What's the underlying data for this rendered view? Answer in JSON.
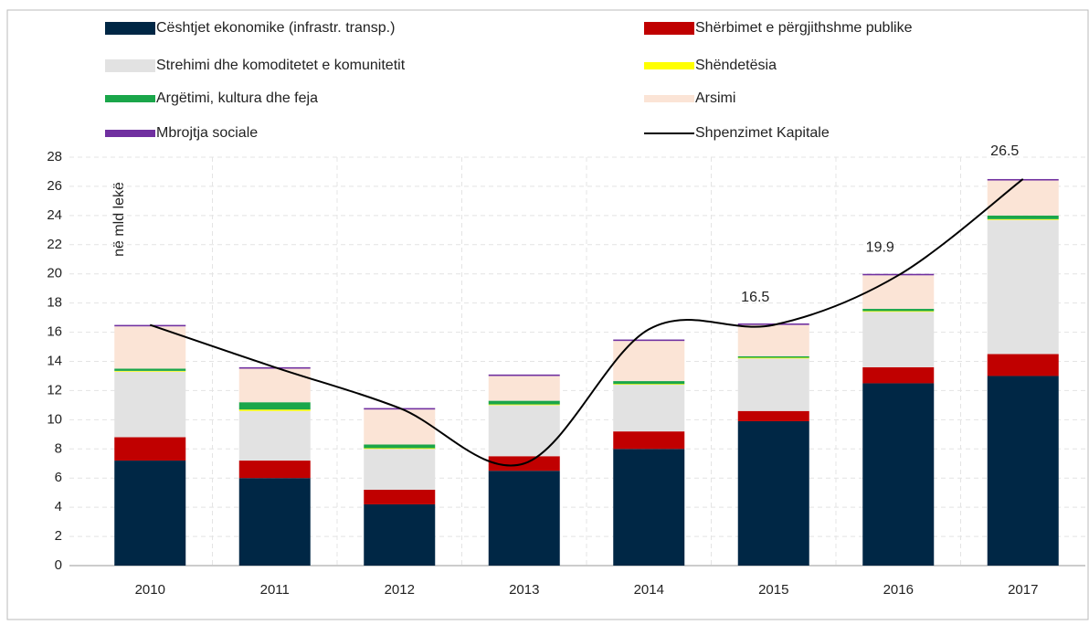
{
  "chart_data": {
    "type": "stacked_bar_line",
    "y_label": "në mld lekë",
    "categories": [
      "2010",
      "2011",
      "2012",
      "2013",
      "2014",
      "2015",
      "2016",
      "2017"
    ],
    "ylim": [
      0,
      28
    ],
    "yticks": [
      0,
      2,
      4,
      6,
      8,
      10,
      12,
      14,
      16,
      18,
      20,
      22,
      24,
      26,
      28
    ],
    "grid": true,
    "series": [
      {
        "name": "Cështjet ekonomike (infrastr. transp.)",
        "color": "#002745",
        "values": [
          7.2,
          6.0,
          4.2,
          6.5,
          8.0,
          9.9,
          12.5,
          13.0
        ]
      },
      {
        "name": "Shërbimet e përgjithshme publike",
        "color": "#c00000",
        "values": [
          1.6,
          1.2,
          1.0,
          1.0,
          1.2,
          0.7,
          1.1,
          1.5
        ]
      },
      {
        "name": "Strehimi dhe komoditetet e komunitetit",
        "color": "#e2e2e2",
        "values": [
          4.5,
          3.4,
          2.8,
          3.5,
          3.2,
          3.6,
          3.8,
          9.2
        ]
      },
      {
        "name": "Shëndetësia",
        "color": "#ffff00",
        "values": [
          0.05,
          0.1,
          0.05,
          0.05,
          0.05,
          0.05,
          0.05,
          0.05
        ]
      },
      {
        "name": "Argëtimi, kultura dhe feja",
        "color": "#1aa64a",
        "values": [
          0.15,
          0.5,
          0.25,
          0.25,
          0.2,
          0.1,
          0.15,
          0.25
        ]
      },
      {
        "name": "Arsimi",
        "color": "#fbe4d6",
        "values": [
          2.9,
          2.3,
          2.4,
          1.7,
          2.75,
          2.15,
          2.3,
          2.4
        ]
      },
      {
        "name": "Mbrojtja sociale",
        "color": "#7030a0",
        "values": [
          0.1,
          0.1,
          0.1,
          0.1,
          0.1,
          0.1,
          0.1,
          0.1
        ]
      },
      {
        "name": "Shpenzimet Kapitale",
        "color": "#000000",
        "type": "line",
        "values": [
          16.5,
          13.6,
          10.8,
          7.0,
          16.2,
          16.5,
          19.9,
          26.5
        ],
        "value_labels": [
          null,
          null,
          null,
          null,
          null,
          "16.5",
          "19.9",
          "26.5"
        ]
      }
    ]
  }
}
